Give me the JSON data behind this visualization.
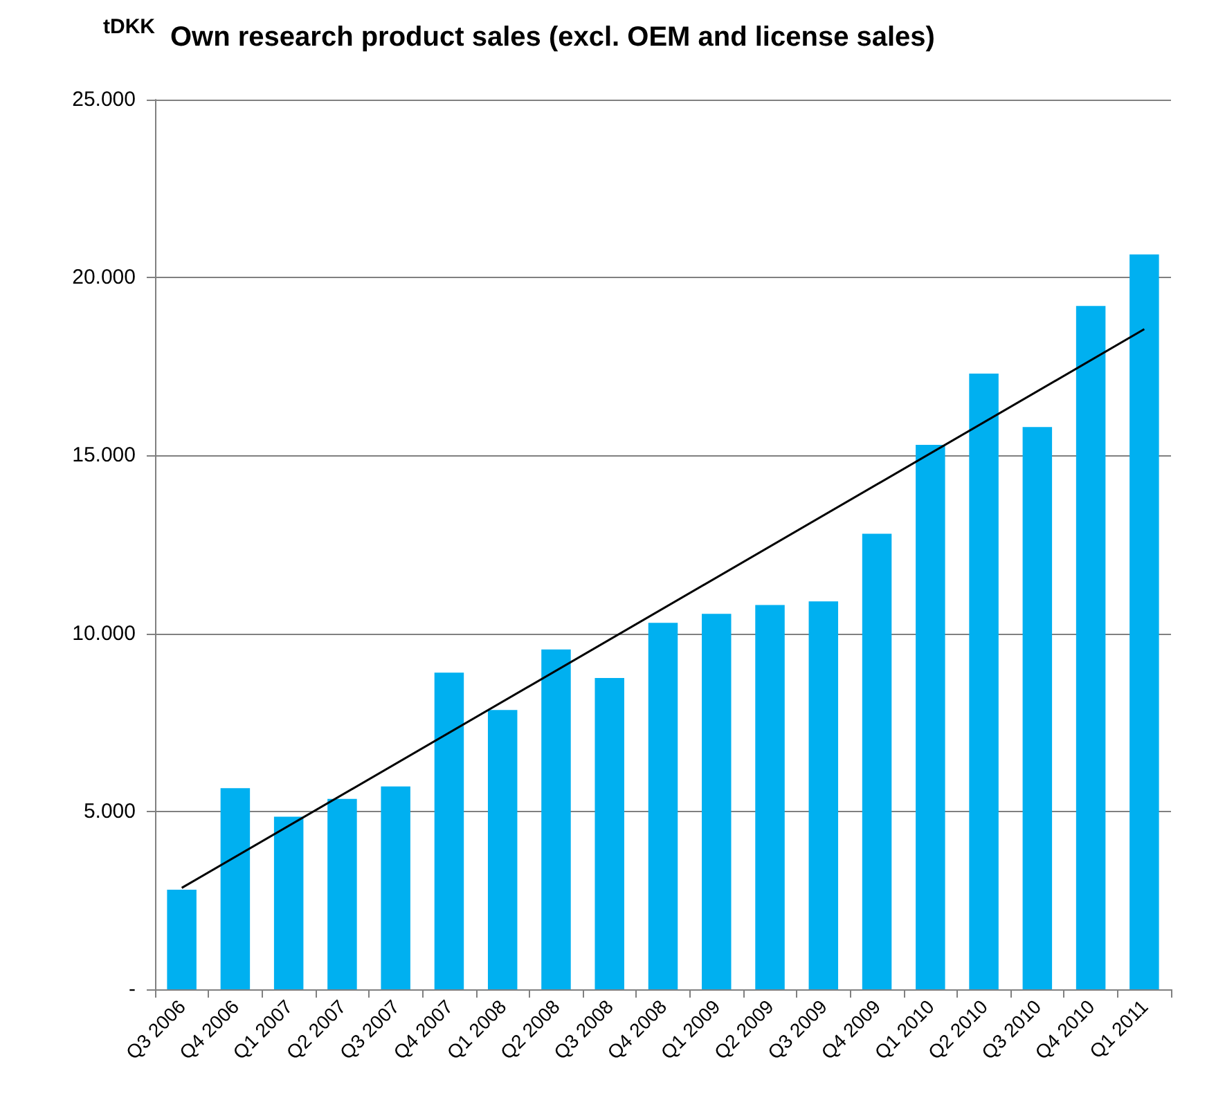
{
  "chart_data": {
    "type": "bar",
    "title": "Own research product sales (excl. OEM and license sales)",
    "ylabel": "tDKK",
    "categories": [
      "Q3 2006",
      "Q4 2006",
      "Q1 2007",
      "Q2 2007",
      "Q3 2007",
      "Q4 2007",
      "Q1 2008",
      "Q2 2008",
      "Q3 2008",
      "Q4 2008",
      "Q1 2009",
      "Q2 2009",
      "Q3 2009",
      "Q4 2009",
      "Q1 2010",
      "Q2 2010",
      "Q3 2010",
      "Q4 2010",
      "Q1 2011"
    ],
    "series": [
      {
        "color": "#00b0f0",
        "values": [
          2800,
          5650,
          4850,
          5350,
          5700,
          8900,
          7850,
          9550,
          8750,
          10300,
          10550,
          10800,
          10900,
          12800,
          15300,
          17300,
          15800,
          19200,
          20650
        ]
      },
      {
        "type": "line",
        "color": "#000000",
        "x": [
          "Q3 2006",
          "Q1 2011"
        ],
        "values": [
          2850,
          18550
        ]
      }
    ],
    "ylim": [
      0,
      25000
    ],
    "yticks": [
      {
        "value": 0,
        "label": "-"
      },
      {
        "value": 5000,
        "label": "5.000"
      },
      {
        "value": 10000,
        "label": "10.000"
      },
      {
        "value": 15000,
        "label": "15.000"
      },
      {
        "value": 20000,
        "label": "20.000"
      },
      {
        "value": 25000,
        "label": "25.000"
      }
    ],
    "grid": "y",
    "marker": "none",
    "line_style": "solid"
  }
}
